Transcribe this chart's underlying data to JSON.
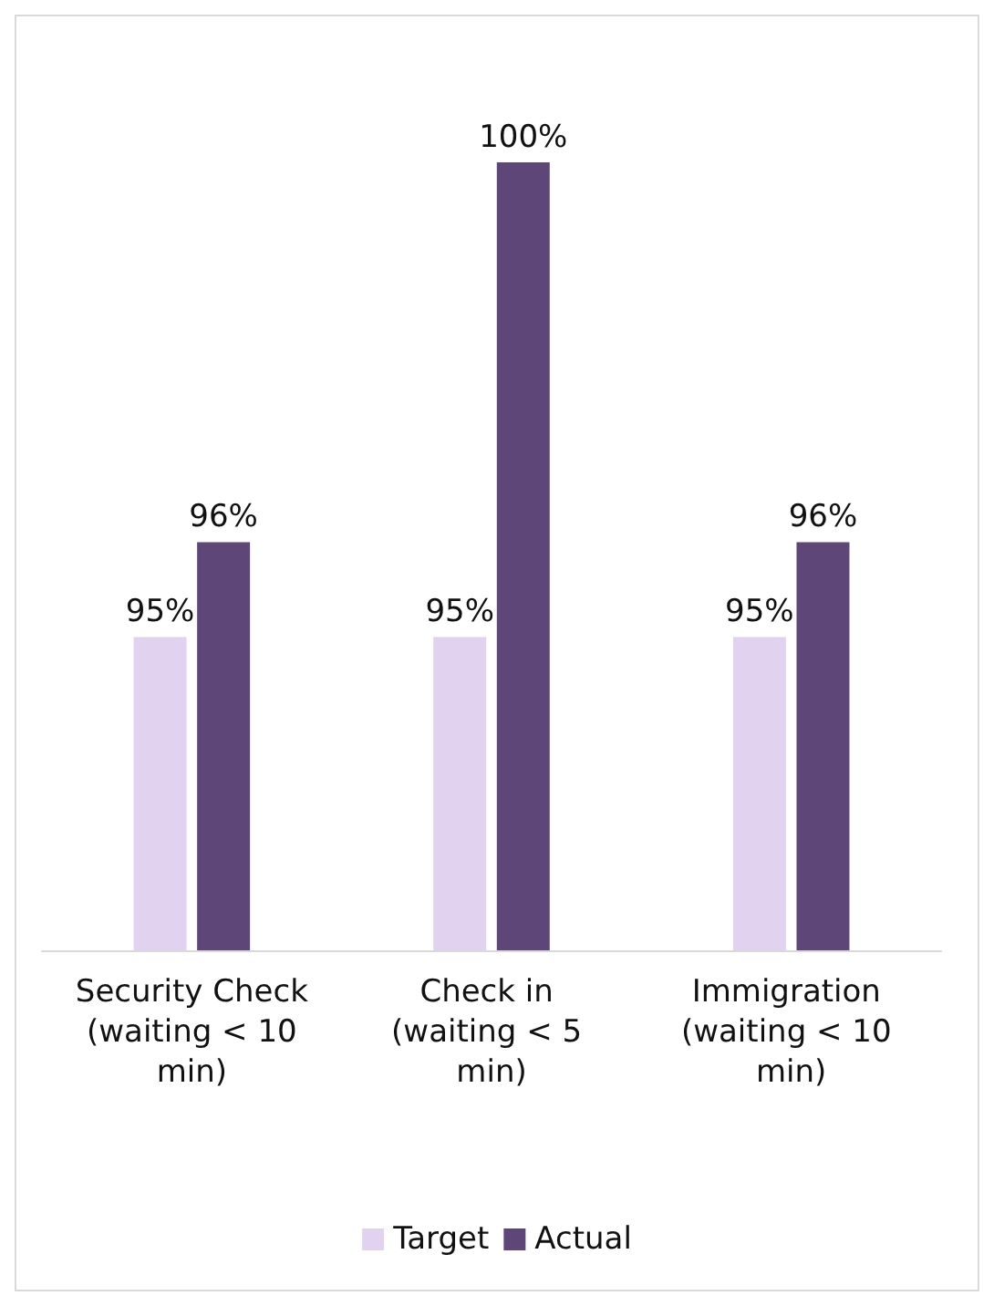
{
  "chart_data": {
    "type": "bar",
    "categories": [
      "Security Check (waiting < 10 min)",
      "Check in (waiting < 5 min)",
      "Immigration (waiting < 10 min)"
    ],
    "series": [
      {
        "name": "Target",
        "color": "#e1d2f0",
        "values": [
          95,
          95,
          95
        ],
        "value_labels": [
          "95%",
          "95%",
          "95%"
        ]
      },
      {
        "name": "Actual",
        "color": "#5e4778",
        "values": [
          96,
          100,
          96
        ],
        "value_labels": [
          "96%",
          "100%",
          "96%"
        ]
      }
    ],
    "ylim": [
      91.7,
      100
    ],
    "tick_labels": "x",
    "legend": "bottom"
  }
}
